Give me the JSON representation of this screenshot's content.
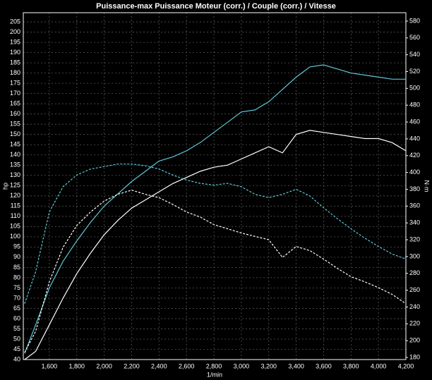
{
  "chart_data": {
    "type": "line",
    "title": "Puissance-max Puissance Moteur (corr.) / Couple (corr.) / Vitesse",
    "x_label": "1/min",
    "y_label": "hp",
    "y2_label": "N·m",
    "x": [
      1420,
      1500,
      1600,
      1700,
      1800,
      1900,
      2000,
      2100,
      2200,
      2300,
      2400,
      2500,
      2600,
      2700,
      2800,
      2900,
      3000,
      3100,
      3200,
      3300,
      3400,
      3500,
      3600,
      3700,
      3800,
      3900,
      4000,
      4100,
      4200
    ],
    "series": [
      {
        "color": "#5fc8d8",
        "style": "solid",
        "axis": "y",
        "values": [
          43,
          57,
          75,
          88,
          98,
          107,
          115,
          121,
          127,
          132,
          137,
          139,
          142,
          146,
          151,
          156,
          161,
          162,
          166,
          172,
          178,
          183,
          184,
          182,
          180,
          179,
          178,
          177,
          177
        ]
      },
      {
        "color": "#ffffff",
        "style": "solid",
        "axis": "y",
        "values": [
          40,
          44,
          57,
          70,
          82,
          92,
          101,
          108,
          114,
          118,
          122,
          126,
          129,
          132,
          134,
          135,
          138,
          141,
          144,
          141,
          150,
          152,
          151,
          150,
          149,
          148,
          148,
          146,
          142
        ]
      },
      {
        "color": "#5fc8d8",
        "style": "dashed",
        "axis": "y2",
        "values": [
          244,
          282,
          353,
          383,
          397,
          404,
          407,
          410,
          410,
          408,
          404,
          397,
          391,
          387,
          385,
          387,
          383,
          374,
          370,
          374,
          380,
          372,
          358,
          345,
          333,
          322,
          312,
          303,
          297
        ]
      },
      {
        "color": "#ffffff",
        "style": "dashed",
        "axis": "y2",
        "values": [
          186,
          211,
          270,
          311,
          337,
          353,
          366,
          374,
          379,
          374,
          370,
          362,
          353,
          347,
          338,
          333,
          328,
          324,
          320,
          299,
          312,
          307,
          297,
          286,
          276,
          270,
          263,
          255,
          244
        ]
      }
    ],
    "xlim": [
      1410,
      4200
    ],
    "xticks": [
      {
        "value": 1600,
        "label": "1,600"
      },
      {
        "value": 1800,
        "label": "1,800"
      },
      {
        "value": 2000,
        "label": "2,000"
      },
      {
        "value": 2200,
        "label": "2,200"
      },
      {
        "value": 2400,
        "label": "2,400"
      },
      {
        "value": 2600,
        "label": "2,600"
      },
      {
        "value": 2800,
        "label": "2,800"
      },
      {
        "value": 3000,
        "label": "3,000"
      },
      {
        "value": 3200,
        "label": "3,200"
      },
      {
        "value": 3400,
        "label": "3,400"
      },
      {
        "value": 3600,
        "label": "3,600"
      },
      {
        "value": 3800,
        "label": "3,800"
      },
      {
        "value": 4000,
        "label": "4,000"
      },
      {
        "value": 4200,
        "label": "4,200"
      }
    ],
    "ylim": [
      40,
      209.5
    ],
    "yticks": [
      40,
      45,
      50,
      55,
      60,
      65,
      70,
      75,
      80,
      85,
      90,
      95,
      100,
      105,
      110,
      115,
      120,
      125,
      130,
      135,
      140,
      145,
      150,
      155,
      160,
      165,
      170,
      175,
      180,
      185,
      190,
      195,
      200,
      205
    ],
    "y2lim": [
      177.5,
      590
    ],
    "y2ticks": [
      180,
      200,
      220,
      240,
      260,
      280,
      300,
      320,
      340,
      360,
      380,
      400,
      420,
      440,
      460,
      480,
      500,
      520,
      540,
      560,
      580
    ],
    "grid": true
  }
}
